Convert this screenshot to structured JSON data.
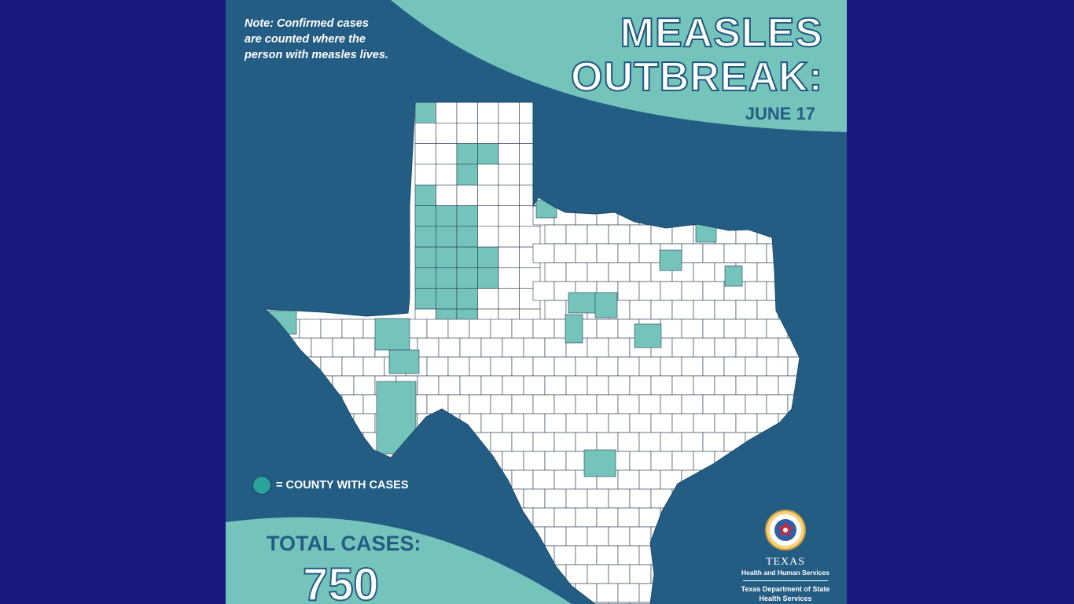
{
  "note": [
    "Note: Confirmed cases",
    "are counted where the",
    "person with measles lives."
  ],
  "title": [
    "MEASLES",
    "OUTBREAK:"
  ],
  "date": "JUNE 17",
  "legend": {
    "label": "= COUNTY WITH CASES",
    "color": "#2aa39b"
  },
  "total": {
    "label": "TOTAL CASES:",
    "value": "750"
  },
  "logo": {
    "agency": "TEXAS",
    "agency_sub": "Health and Human Services",
    "department": [
      "Texas Department of State",
      "Health Services"
    ],
    "icon": "texas-star-seal-icon"
  },
  "colors": {
    "background": "#181a82",
    "panel": "#245d83",
    "accent": "#75c4bc",
    "affected_county": "#75c4bc",
    "county": "#ffffff"
  }
}
